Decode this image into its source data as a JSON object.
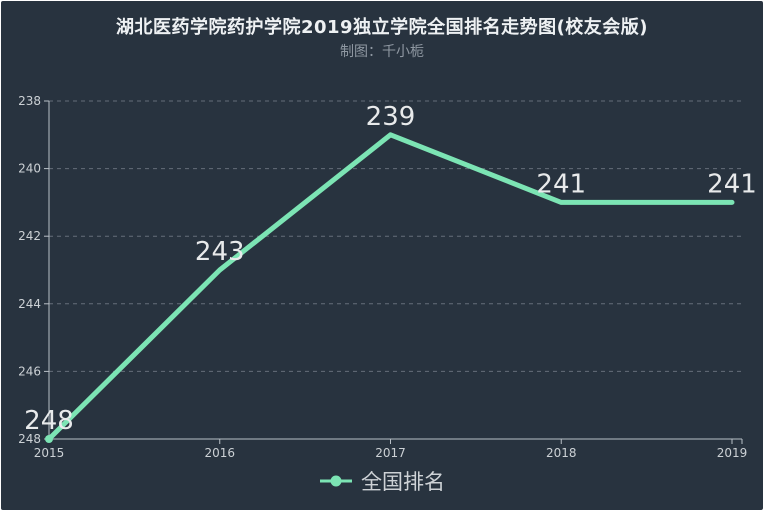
{
  "header": {
    "title": "湖北医药学院药护学院2019独立学院全国排名走势图(校友会版)",
    "subtitle": "制图：千小栀"
  },
  "legend": {
    "label": "全国排名"
  },
  "colors": {
    "background": "#28333f",
    "line": "#7ce4b4",
    "grid": "#7f8893",
    "axis": "#b9c0c7",
    "tick_label": "#ccd1d5",
    "data_label": "#e8eaeb",
    "title": "#eef1f3",
    "subtitle": "#8f98a2",
    "legend_text": "#ced2d6"
  },
  "chart_data": {
    "type": "line",
    "title": "湖北医药学院药护学院2019独立学院全国排名走势图(校友会版)",
    "subtitle": "制图：千小栀",
    "x": [
      "2015",
      "2016",
      "2017",
      "2018",
      "2019"
    ],
    "series": [
      {
        "name": "全国排名",
        "values": [
          248,
          243,
          239,
          241,
          241
        ]
      }
    ],
    "xlabel": "",
    "ylabel": "",
    "y_axis": {
      "min": 238,
      "max": 248,
      "ticks": [
        238,
        240,
        242,
        244,
        246,
        248
      ],
      "inverted": true
    },
    "grid": "horizontal-dashed",
    "legend_position": "bottom",
    "data_labels": true,
    "first_point_marker": true
  }
}
